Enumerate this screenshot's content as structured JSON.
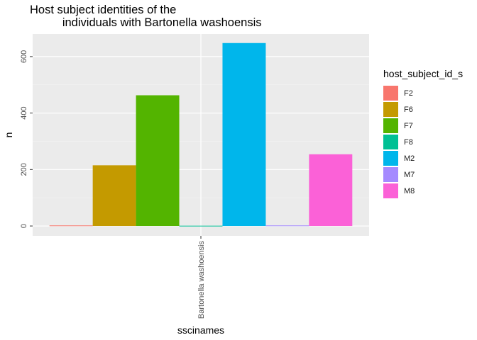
{
  "chart_data": {
    "type": "bar",
    "title_lines": [
      "Host subject identities of the",
      "          individuals with Bartonella washoensis"
    ],
    "xlabel": "sscinames",
    "ylabel": "n",
    "categories": [
      "Bartonella washoensis"
    ],
    "ylim": [
      -35,
      680
    ],
    "y_ticks": [
      0,
      200,
      400,
      600
    ],
    "grid": true,
    "legend": {
      "title": "host_subject_id_s",
      "position": "right"
    },
    "series": [
      {
        "name": "F2",
        "color": "#F8766D",
        "values": [
          2
        ]
      },
      {
        "name": "F6",
        "color": "#C49A00",
        "values": [
          215
        ]
      },
      {
        "name": "F7",
        "color": "#53B400",
        "values": [
          463
        ]
      },
      {
        "name": "F8",
        "color": "#00C094",
        "values": [
          1
        ]
      },
      {
        "name": "M2",
        "color": "#00B6EB",
        "values": [
          648
        ]
      },
      {
        "name": "M7",
        "color": "#A58AFF",
        "values": [
          2
        ]
      },
      {
        "name": "M8",
        "color": "#FB61D7",
        "values": [
          254
        ]
      }
    ]
  }
}
